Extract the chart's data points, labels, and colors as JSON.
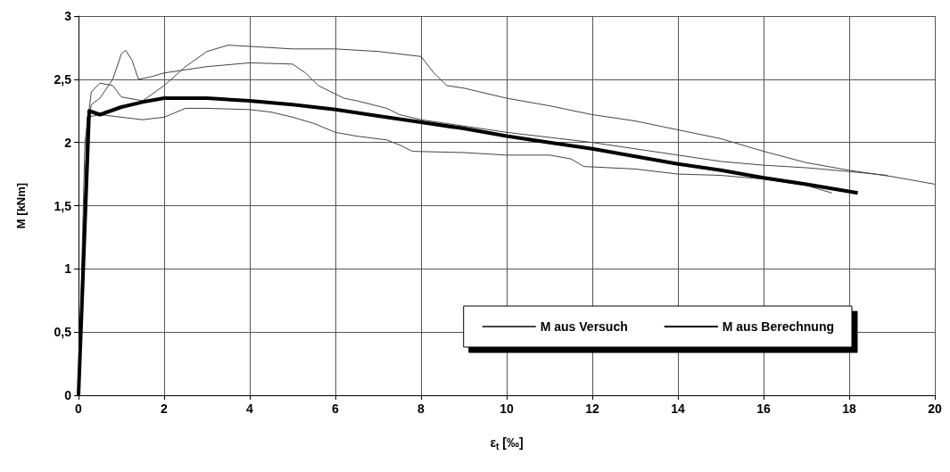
{
  "chart_data": {
    "type": "line",
    "xlabel": "ε$_{t}$ [‰]",
    "ylabel": "M [kNm]",
    "xlim": [
      0,
      20
    ],
    "xticks": [
      0,
      2,
      4,
      6,
      8,
      10,
      12,
      14,
      16,
      18,
      20
    ],
    "ylim": [
      0,
      3
    ],
    "yticks": [
      0,
      {
        "value": 0.5,
        "label": "0,5"
      },
      1,
      {
        "value": 1.5,
        "label": "1,5"
      },
      2,
      {
        "value": 2.5,
        "label": "2,5"
      },
      3
    ],
    "grid": true,
    "legend": "bottom right",
    "marker": "none",
    "line_style": "solid",
    "series": [
      {
        "name": "M aus Versuch",
        "color": "#444444",
        "x": [
          0,
          0.15,
          0.3,
          0.5,
          0.8,
          1,
          1.5,
          2,
          2.5,
          3,
          3.5,
          4,
          5,
          6,
          7,
          8,
          8.3,
          8.6,
          9,
          10,
          11,
          12,
          13,
          14,
          15,
          16,
          17,
          18,
          19,
          20
        ],
        "values": [
          0,
          2.0,
          2.4,
          2.47,
          2.45,
          2.36,
          2.33,
          2.45,
          2.6,
          2.72,
          2.77,
          2.76,
          2.74,
          2.74,
          2.72,
          2.68,
          2.55,
          2.45,
          2.43,
          2.35,
          2.29,
          2.22,
          2.17,
          2.1,
          2.03,
          1.93,
          1.84,
          1.78,
          1.73,
          1.67
        ]
      },
      {
        "color": "#444444",
        "x": [
          0,
          0.2,
          0.3,
          0.5,
          0.8,
          1.0,
          1.1,
          1.25,
          1.4,
          1.7,
          2,
          3,
          4,
          5,
          5.3,
          5.6,
          6.2,
          6.5,
          7.2,
          7.5,
          8,
          9,
          10,
          11,
          12,
          13,
          14,
          15,
          16,
          17,
          18,
          18.9
        ],
        "values": [
          0,
          2.1,
          2.3,
          2.35,
          2.5,
          2.7,
          2.73,
          2.65,
          2.5,
          2.52,
          2.55,
          2.6,
          2.63,
          2.62,
          2.55,
          2.45,
          2.35,
          2.33,
          2.27,
          2.22,
          2.18,
          2.13,
          2.08,
          2.04,
          2.0,
          1.95,
          1.9,
          1.85,
          1.82,
          1.8,
          1.77,
          1.74
        ]
      },
      {
        "color": "#444444",
        "x": [
          0,
          0.2,
          0.5,
          1,
          1.5,
          2,
          2.5,
          3,
          4,
          4.5,
          5,
          5.5,
          6,
          6.5,
          7.2,
          7.5,
          7.8,
          9,
          10,
          11,
          11.5,
          11.8,
          13,
          14,
          15,
          16,
          17,
          17.6
        ],
        "values": [
          0,
          2.2,
          2.22,
          2.2,
          2.18,
          2.2,
          2.27,
          2.27,
          2.26,
          2.24,
          2.2,
          2.15,
          2.08,
          2.05,
          2.02,
          1.98,
          1.93,
          1.92,
          1.9,
          1.9,
          1.87,
          1.81,
          1.79,
          1.75,
          1.74,
          1.71,
          1.66,
          1.6
        ]
      },
      {
        "name": "M aus Berechnung",
        "color": "#000000",
        "x": [
          0,
          0.25,
          0.5,
          1,
          1.5,
          2,
          3,
          4,
          5,
          6,
          7,
          8,
          9,
          10,
          11,
          12,
          13,
          14,
          15,
          16,
          17,
          18.2
        ],
        "values": [
          0,
          2.25,
          2.22,
          2.28,
          2.32,
          2.35,
          2.35,
          2.33,
          2.3,
          2.26,
          2.21,
          2.16,
          2.11,
          2.05,
          2.0,
          1.95,
          1.89,
          1.83,
          1.78,
          1.72,
          1.67,
          1.6
        ]
      }
    ]
  }
}
